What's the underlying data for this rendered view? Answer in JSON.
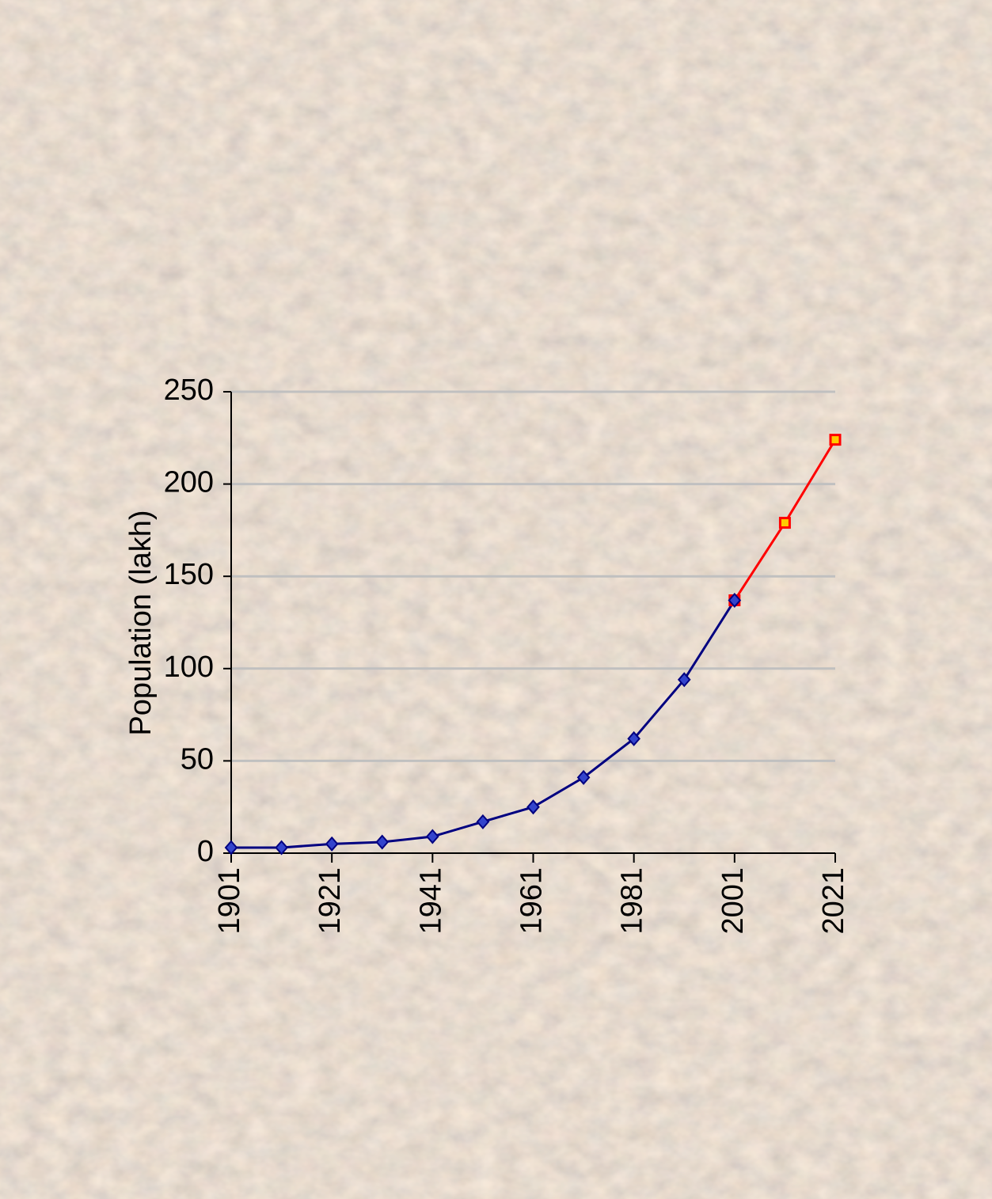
{
  "chart_data": {
    "type": "line",
    "y_label": "Population (lakh)",
    "x": [
      1901,
      1911,
      1921,
      1931,
      1941,
      1951,
      1961,
      1971,
      1981,
      1991,
      2001,
      2011,
      2021
    ],
    "series": [
      {
        "color": "#ff0000",
        "marker": "square",
        "marker_fill": "#ffcc00",
        "values": [
          null,
          null,
          null,
          null,
          null,
          null,
          null,
          null,
          null,
          null,
          137,
          179,
          224
        ]
      },
      {
        "color": "#000080",
        "marker": "diamond",
        "marker_fill": "#3344cc",
        "values": [
          3,
          3,
          5,
          6,
          9,
          17,
          25,
          41,
          62,
          94,
          137,
          null,
          null
        ]
      }
    ],
    "xlim": [
      1901,
      2021
    ],
    "xticks": [
      1901,
      1921,
      1941,
      1961,
      1981,
      2001,
      2021
    ],
    "ylim": [
      0,
      250
    ],
    "yticks": [
      0,
      50,
      100,
      150,
      200,
      250
    ],
    "grid": true
  }
}
